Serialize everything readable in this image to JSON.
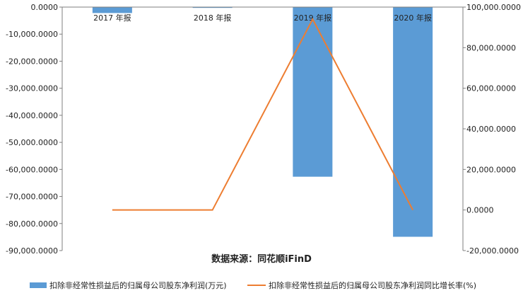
{
  "chart_data": {
    "type": "bar",
    "categories": [
      "2017 年报",
      "2018 年报",
      "2019 年报",
      "2020 年报"
    ],
    "series": [
      {
        "name": "扣除非经常性损益后的归属母公司股东净利润(万元)",
        "type": "bar",
        "axis": "left",
        "values": [
          -2200,
          -300,
          -62700,
          -84900
        ]
      },
      {
        "name": "扣除非经常性损益后的归属母公司股东净利润同比增长率(%)",
        "type": "line",
        "axis": "right",
        "values": [
          0,
          0,
          94000,
          0
        ]
      }
    ],
    "left_axis": {
      "ylim": [
        -90000,
        0
      ],
      "ticks": [
        "0.0000",
        "-10,000.0000",
        "-20,000.0000",
        "-30,000.0000",
        "-40,000.0000",
        "-50,000.0000",
        "-60,000.0000",
        "-70,000.0000",
        "-80,000.0000",
        "-90,000.0000"
      ]
    },
    "right_axis": {
      "ylim": [
        -20000,
        100000
      ],
      "ticks": [
        "100,000.0000",
        "80,000.0000",
        "60,000.0000",
        "40,000.0000",
        "20,000.0000",
        "0.0000",
        "-20,000.0000"
      ]
    },
    "source": "数据来源：同花顺iFinD",
    "colors": {
      "bar": "#5b9bd5",
      "line": "#ed7d31",
      "axis": "#7f7f7f"
    },
    "legend_position": "bottom"
  }
}
